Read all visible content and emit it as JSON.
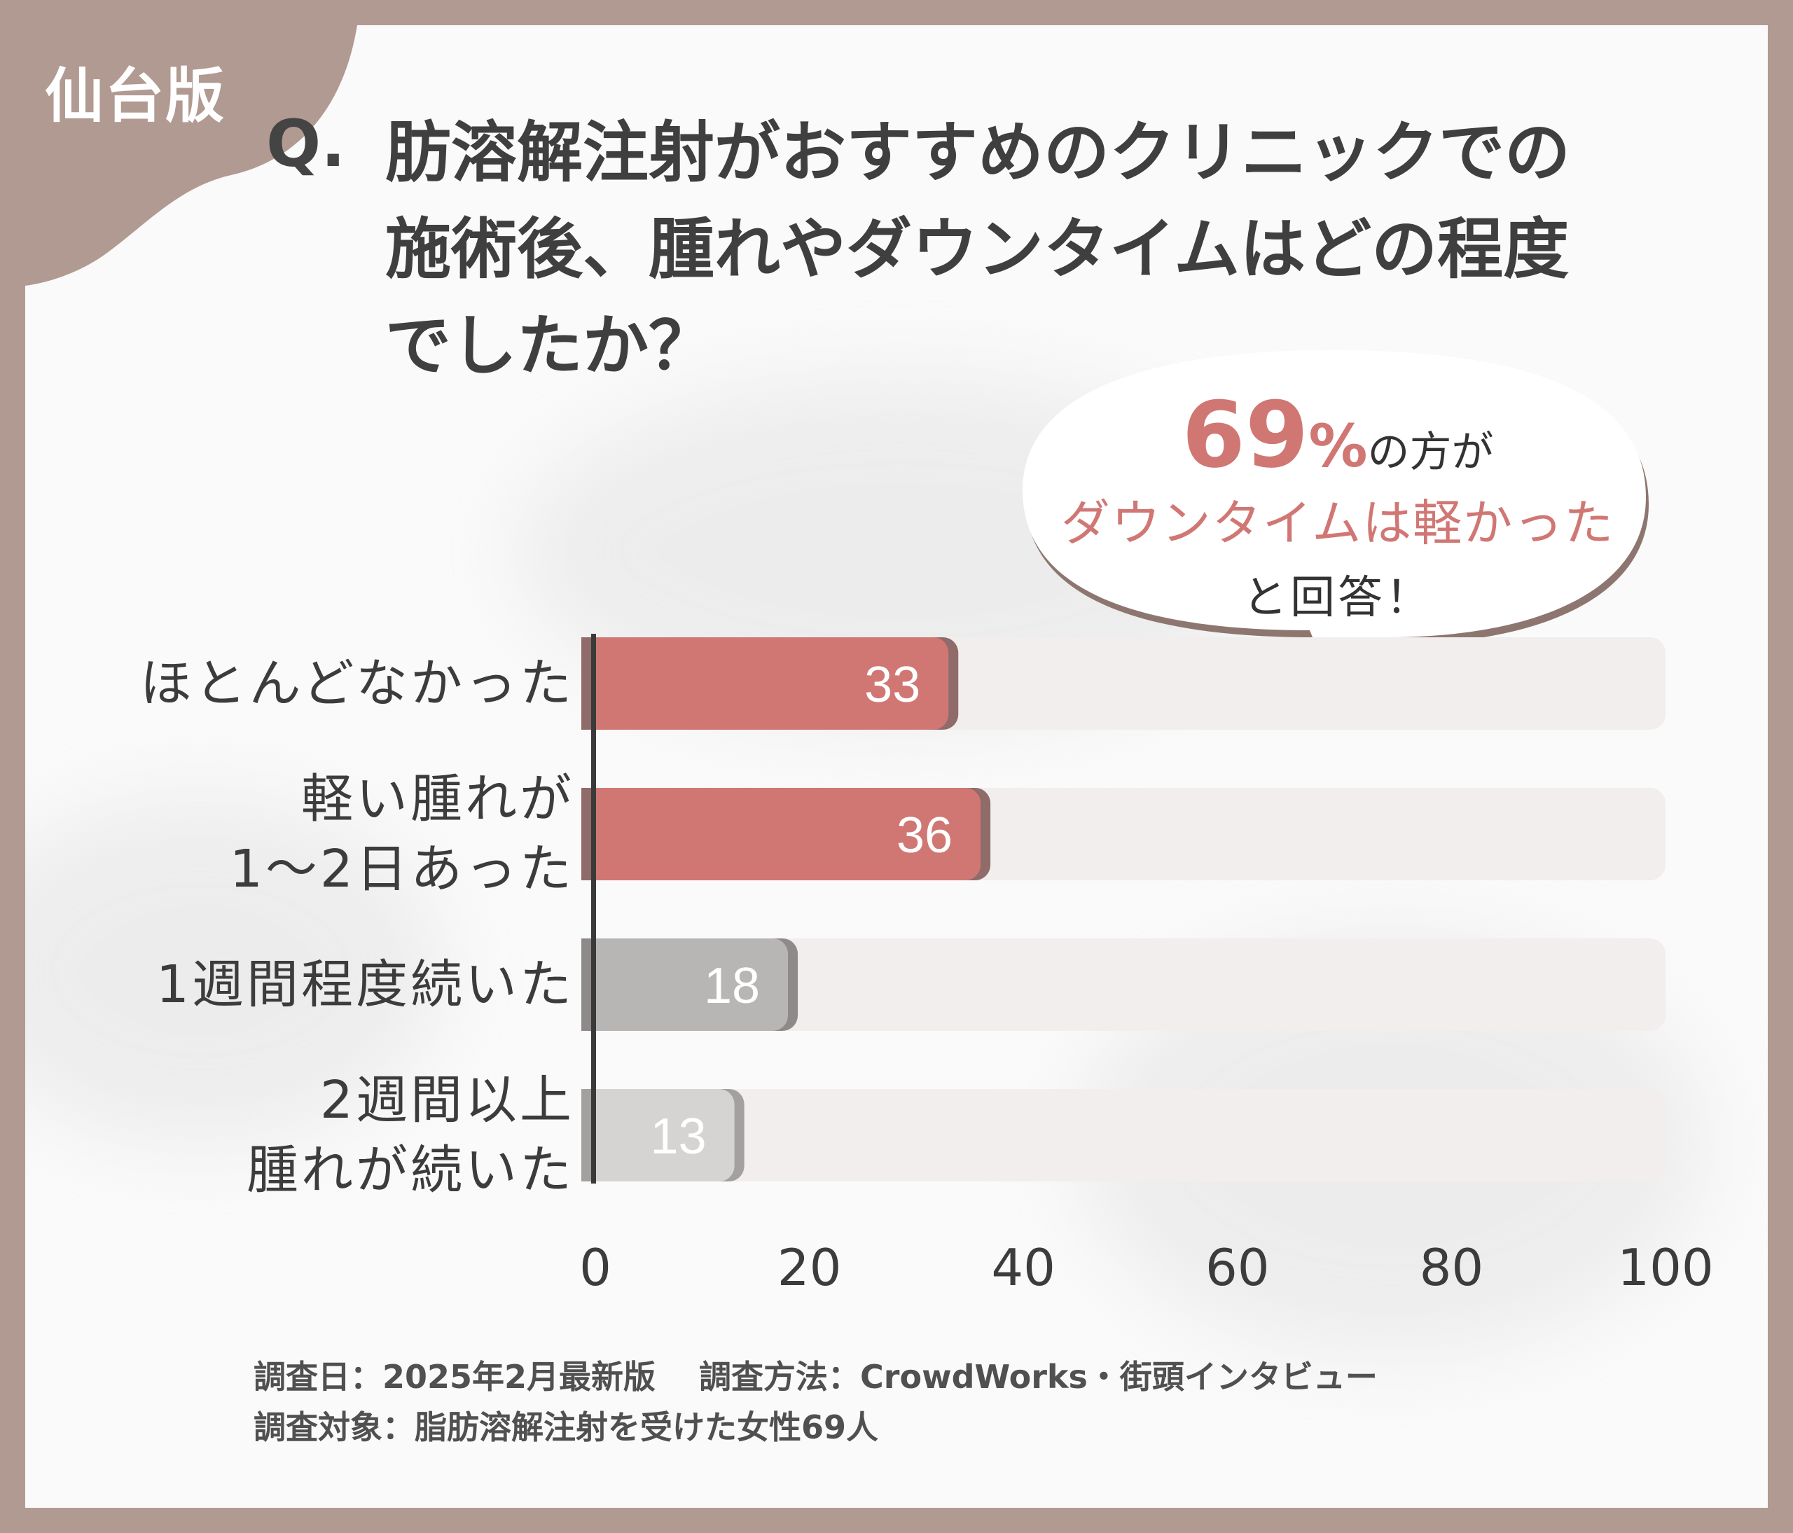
{
  "region_tag": "仙台版",
  "question": {
    "prefix": "Q.",
    "lines": [
      "肪溶解注射がおすすめのクリニックでの",
      "施術後、腫れやダウンタイムはどの程度",
      "でしたか？"
    ]
  },
  "callout": {
    "percent_value": "69",
    "percent_symbol": "%",
    "line1_suffix": "の方が",
    "line2": "ダウンタイムは軽かった",
    "line3": "と回答！"
  },
  "colors": {
    "background_frame": "#b19a92",
    "panel": "#fafafa",
    "accent": "#d07774",
    "gray_bar": "#b8b5b5",
    "light_bar": "#d6d3d3",
    "track": "#f1eeed"
  },
  "chart_data": {
    "type": "bar",
    "orientation": "horizontal",
    "categories": [
      "ほとんどなかった",
      "軽い腫れが\n1〜2日あった",
      "1週間程度続いた",
      "2週間以上\n腫れが続いた"
    ],
    "values": [
      33,
      36,
      18,
      13
    ],
    "bar_colors": [
      "#d07774",
      "#d07774",
      "#b8b5b5",
      "#d6d3d3"
    ],
    "xlim": [
      0,
      100
    ],
    "xticks": [
      0,
      20,
      40,
      60,
      80,
      100
    ],
    "grid": false,
    "legend": "none"
  },
  "footnotes": [
    "調査日：2025年2月最新版　 調査方法：CrowdWorks・街頭インタビュー",
    "調査対象：脂肪溶解注射を受けた女性69人"
  ]
}
